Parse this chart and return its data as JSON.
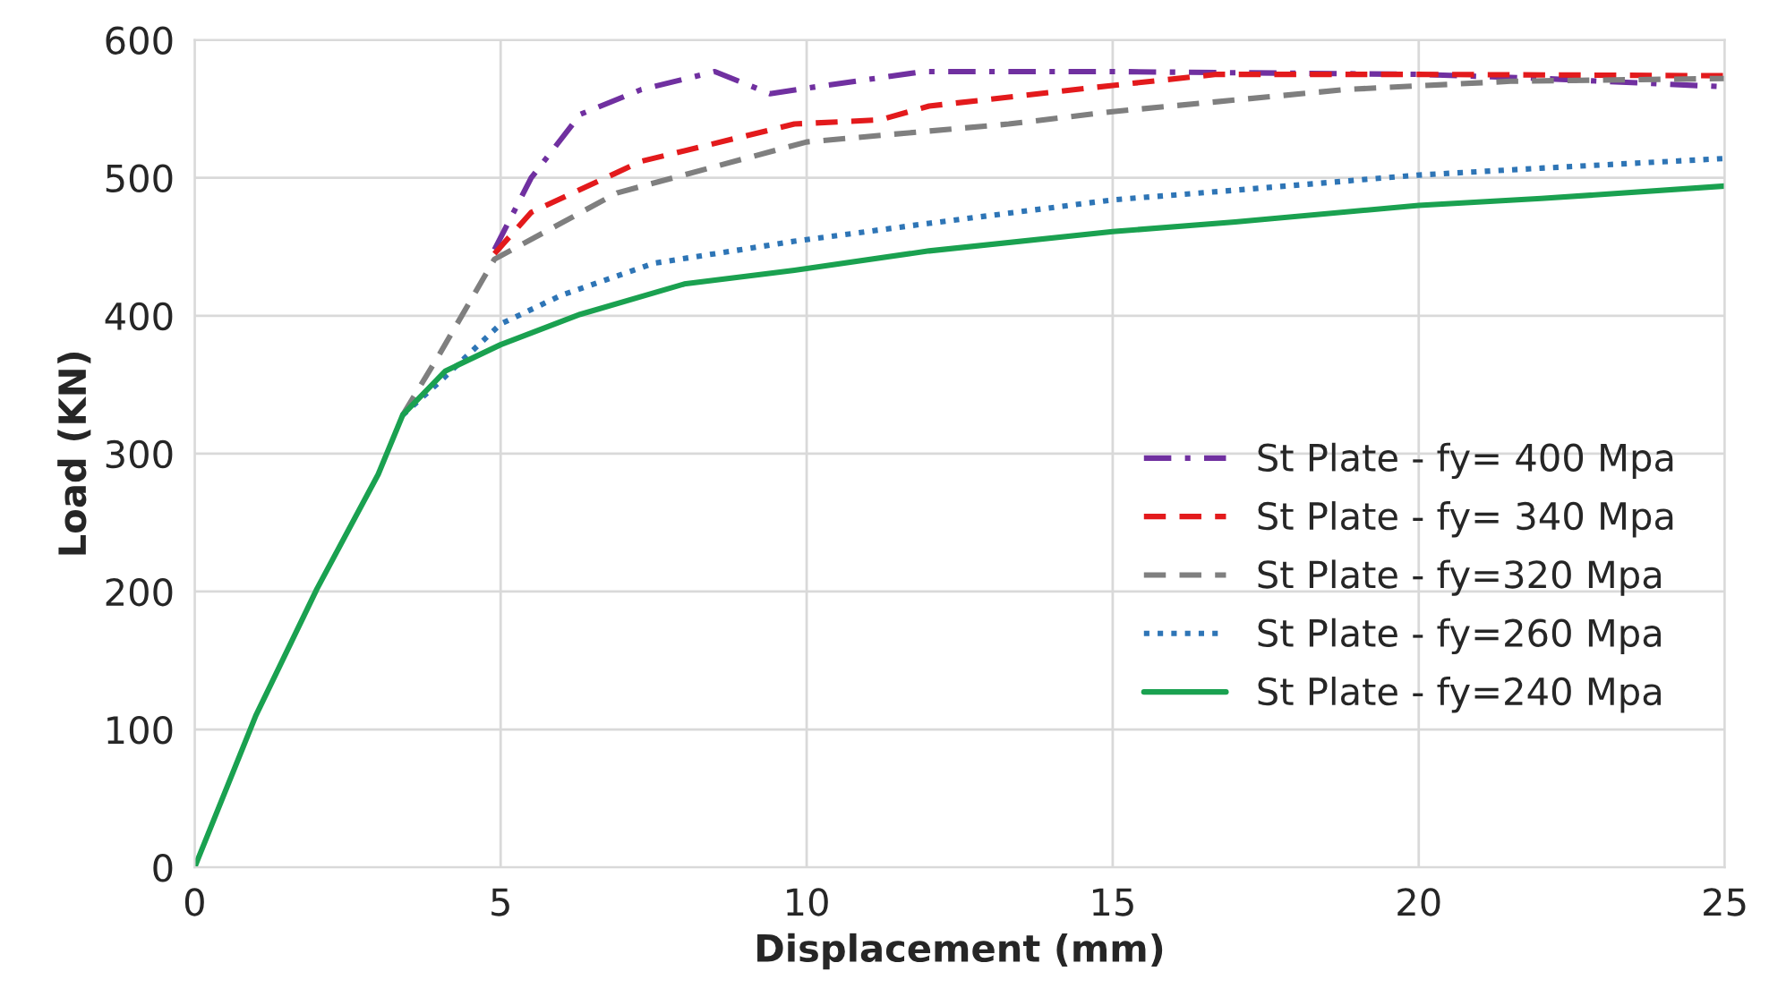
{
  "chart_data": {
    "type": "line",
    "xlabel": "Displacement (mm)",
    "ylabel": "Load (KN)",
    "xlim": [
      0,
      25
    ],
    "ylim": [
      0,
      600
    ],
    "xticks": [
      0,
      5,
      10,
      15,
      20,
      25
    ],
    "yticks": [
      0,
      100,
      200,
      300,
      400,
      500,
      600
    ],
    "grid": true,
    "legend": "right",
    "marker": "none",
    "series": [
      {
        "name": "St Plate - fy= 400 Mpa",
        "color": "#7030a0",
        "line_style": "dashdot",
        "x": [
          4.9,
          5.5,
          6.3,
          7.3,
          8.5,
          9.4,
          10,
          11.9,
          15,
          20,
          22,
          25
        ],
        "values": [
          448,
          500,
          546,
          564,
          577,
          561,
          565,
          577,
          577,
          575,
          572,
          566
        ]
      },
      {
        "name": "St Plate - fy= 340 Mpa",
        "color": "#e31a1c",
        "line_style": "dashed",
        "x": [
          4.9,
          5.5,
          7.3,
          9.8,
          11.2,
          12,
          15,
          16.7,
          20,
          25
        ],
        "values": [
          445,
          475,
          512,
          539,
          542,
          552,
          567,
          575,
          575,
          574
        ]
      },
      {
        "name": "St Plate - fy=320 Mpa",
        "color": "#7f7f7f",
        "line_style": "dashed",
        "x": [
          3.4,
          4,
          4.9,
          6.9,
          10,
          13.3,
          15,
          18.8,
          21.5,
          25
        ],
        "values": [
          328,
          372,
          441,
          489,
          526,
          539,
          548,
          564,
          570,
          572
        ]
      },
      {
        "name": "St Plate - fy=260 Mpa",
        "color": "#2e75b6",
        "line_style": "dotted",
        "x": [
          3.4,
          4,
          5,
          6,
          7.5,
          9.8,
          12,
          15,
          17,
          20,
          22,
          25
        ],
        "values": [
          328,
          352,
          394,
          415,
          438,
          454,
          467,
          484,
          491,
          502,
          507,
          514
        ]
      },
      {
        "name": "St Plate - fy=240 Mpa",
        "color": "#1aa150",
        "line_style": "solid",
        "x": [
          0,
          1,
          2,
          3,
          3.4,
          4.1,
          5,
          6.3,
          8,
          9.8,
          12,
          15,
          17,
          20,
          22,
          25
        ],
        "values": [
          0,
          110,
          202,
          285,
          328,
          360,
          379,
          401,
          423,
          433,
          447,
          461,
          468,
          480,
          485,
          494
        ]
      }
    ]
  }
}
